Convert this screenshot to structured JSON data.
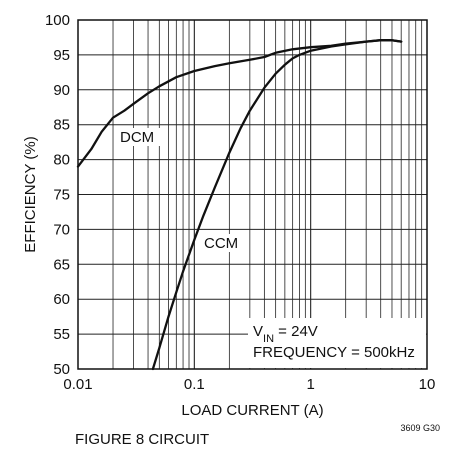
{
  "chart_data": {
    "type": "line",
    "title": "",
    "xlabel": "LOAD CURRENT (A)",
    "ylabel": "EFFICIENCY (%)",
    "xscale": "log",
    "xlim": [
      0.01,
      10
    ],
    "ylim": [
      50,
      100
    ],
    "x_ticks": [
      "0.01",
      "0.1",
      "1",
      "10"
    ],
    "y_ticks": [
      "50",
      "55",
      "60",
      "65",
      "70",
      "75",
      "80",
      "85",
      "90",
      "95",
      "100"
    ],
    "grid": true,
    "series": [
      {
        "name": "DCM",
        "x": [
          0.01,
          0.013,
          0.016,
          0.02,
          0.025,
          0.03,
          0.04,
          0.05,
          0.07,
          0.1,
          0.15,
          0.2,
          0.3,
          0.4,
          0.5,
          0.7,
          1,
          1.5,
          2,
          3,
          4,
          5,
          6
        ],
        "y": [
          79,
          81.5,
          84,
          86,
          87,
          88,
          89.5,
          90.5,
          91.8,
          92.7,
          93.4,
          93.8,
          94.3,
          94.7,
          95.3,
          95.8,
          96.1,
          96.3,
          96.6,
          96.9,
          97.1,
          97.1,
          96.9
        ]
      },
      {
        "name": "CCM",
        "x": [
          0.044,
          0.05,
          0.06,
          0.07,
          0.08,
          0.1,
          0.12,
          0.15,
          0.2,
          0.25,
          0.3,
          0.4,
          0.5,
          0.6,
          0.7,
          0.8,
          1,
          1.5,
          2,
          3,
          4,
          5,
          6
        ],
        "y": [
          50,
          53,
          57.5,
          61,
          64,
          68.5,
          72,
          76,
          81,
          84.5,
          87,
          90.3,
          92.3,
          93.6,
          94.5,
          95,
          95.6,
          96.2,
          96.5,
          96.9,
          97.1,
          97.1,
          96.9
        ]
      }
    ]
  },
  "annotations": {
    "vin_prefix": "V",
    "vin_sub": "IN",
    "vin_rest": " = 24V",
    "frequency": "FREQUENCY = 500kHz",
    "figure_label": "FIGURE 8 CIRCUIT",
    "code": "3609 G30"
  }
}
